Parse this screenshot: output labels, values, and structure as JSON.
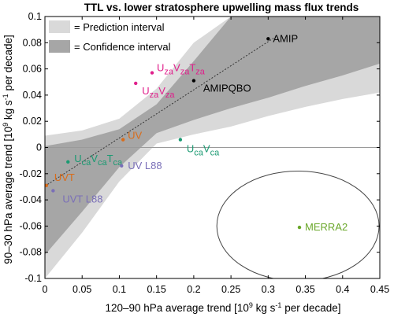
{
  "chart_data": {
    "type": "scatter",
    "title": "TTL vs. lower stratosphere upwelling mass flux trends",
    "xlabel_parts": [
      "120–90 hPa average trend [10",
      "9",
      " kg s",
      "-1",
      " per decade]"
    ],
    "ylabel_parts": [
      "90–30 hPa average trend [10",
      "9",
      " kg s",
      "-1",
      " per decade]"
    ],
    "xlim": [
      0,
      0.45
    ],
    "ylim": [
      -0.1,
      0.1
    ],
    "xticks": [
      0,
      0.05,
      0.1,
      0.15,
      0.2,
      0.25,
      0.3,
      0.35,
      0.4,
      0.45
    ],
    "xtick_labels": [
      "0",
      "0.05",
      "0.1",
      "0.15",
      "0.2",
      "0.25",
      "0.3",
      "0.35",
      "0.4",
      "0.45"
    ],
    "yticks": [
      -0.1,
      -0.08,
      -0.06,
      -0.04,
      -0.02,
      0,
      0.02,
      0.04,
      0.06,
      0.08,
      0.1
    ],
    "ytick_labels": [
      "-0.1",
      "-0.08",
      "-0.06",
      "-0.04",
      "-0.02",
      "0",
      "0.02",
      "0.04",
      "0.06",
      "0.08",
      "0.1"
    ],
    "legend": {
      "position": "top-left",
      "entries": [
        {
          "label": "= Prediction interval",
          "color": "#d9d9d9"
        },
        {
          "label": "= Confidence interval",
          "color": "#a6a6a6"
        }
      ]
    },
    "colors": {
      "prediction": "#d9d9d9",
      "confidence": "#a6a6a6",
      "regression": "#333333",
      "zero_line": "#9a9a9a"
    },
    "regression_line": {
      "x": [
        0,
        0.31
      ],
      "y": [
        -0.0295,
        0.0845
      ],
      "style": "dotted"
    },
    "prediction_interval": {
      "x": [
        0,
        0.05,
        0.1,
        0.15,
        0.2,
        0.25,
        0.3,
        0.35,
        0.4,
        0.45
      ],
      "upper": [
        0.009,
        0.013,
        0.022,
        0.045,
        0.08,
        0.1,
        0.1,
        0.1,
        0.1,
        0.1
      ],
      "lower": [
        -0.1,
        -0.065,
        -0.026,
        0.003,
        0.01,
        0.016,
        0.024,
        0.031,
        0.037,
        0.042
      ]
    },
    "confidence_interval": {
      "x": [
        0,
        0.05,
        0.1,
        0.15,
        0.2,
        0.25,
        0.3,
        0.35,
        0.4,
        0.45
      ],
      "upper": [
        0.001,
        0.006,
        0.014,
        0.033,
        0.066,
        0.1,
        0.1,
        0.1,
        0.1,
        0.1
      ],
      "lower": [
        -0.082,
        -0.049,
        -0.015,
        0.011,
        0.021,
        0.03,
        0.038,
        0.047,
        0.055,
        0.064
      ]
    },
    "reference_ellipse": {
      "cx": 0.34,
      "cy": -0.06,
      "rx": 0.109,
      "ry": 0.042,
      "color": "#444444"
    },
    "points": [
      {
        "label_parts": [
          "AMIP"
        ],
        "x": 0.3,
        "y": 0.083,
        "color": "#000000"
      },
      {
        "label_parts": [
          "AMIPQBO"
        ],
        "x": 0.2,
        "y": 0.051,
        "color": "#000000"
      },
      {
        "label_parts": [
          "U",
          "za",
          "V",
          "za",
          "T",
          "za"
        ],
        "x": 0.144,
        "y": 0.057,
        "color": "#e0208c"
      },
      {
        "label_parts": [
          "U",
          "za",
          "V",
          "za"
        ],
        "x": 0.122,
        "y": 0.049,
        "color": "#e0208c"
      },
      {
        "label_parts": [
          "UV"
        ],
        "x": 0.105,
        "y": 0.006,
        "color": "#d96c1a"
      },
      {
        "label_parts": [
          "U",
          "ca",
          "V",
          "ca"
        ],
        "x": 0.182,
        "y": 0.006,
        "color": "#1a9a72"
      },
      {
        "label_parts": [
          "U",
          "ca",
          "V",
          "ca",
          "T",
          "ca"
        ],
        "x": 0.031,
        "y": -0.011,
        "color": "#1a9a72"
      },
      {
        "label_parts": [
          "UV L88"
        ],
        "x": 0.103,
        "y": -0.014,
        "color": "#7a6fb8"
      },
      {
        "label_parts": [
          "UVT"
        ],
        "x": 0.002,
        "y": -0.029,
        "color": "#d96c1a"
      },
      {
        "label_parts": [
          "UVT L88"
        ],
        "x": 0.011,
        "y": -0.033,
        "color": "#7a6fb8"
      },
      {
        "label_parts": [
          "MERRA2"
        ],
        "x": 0.342,
        "y": -0.061,
        "color": "#6aa72a"
      }
    ]
  }
}
